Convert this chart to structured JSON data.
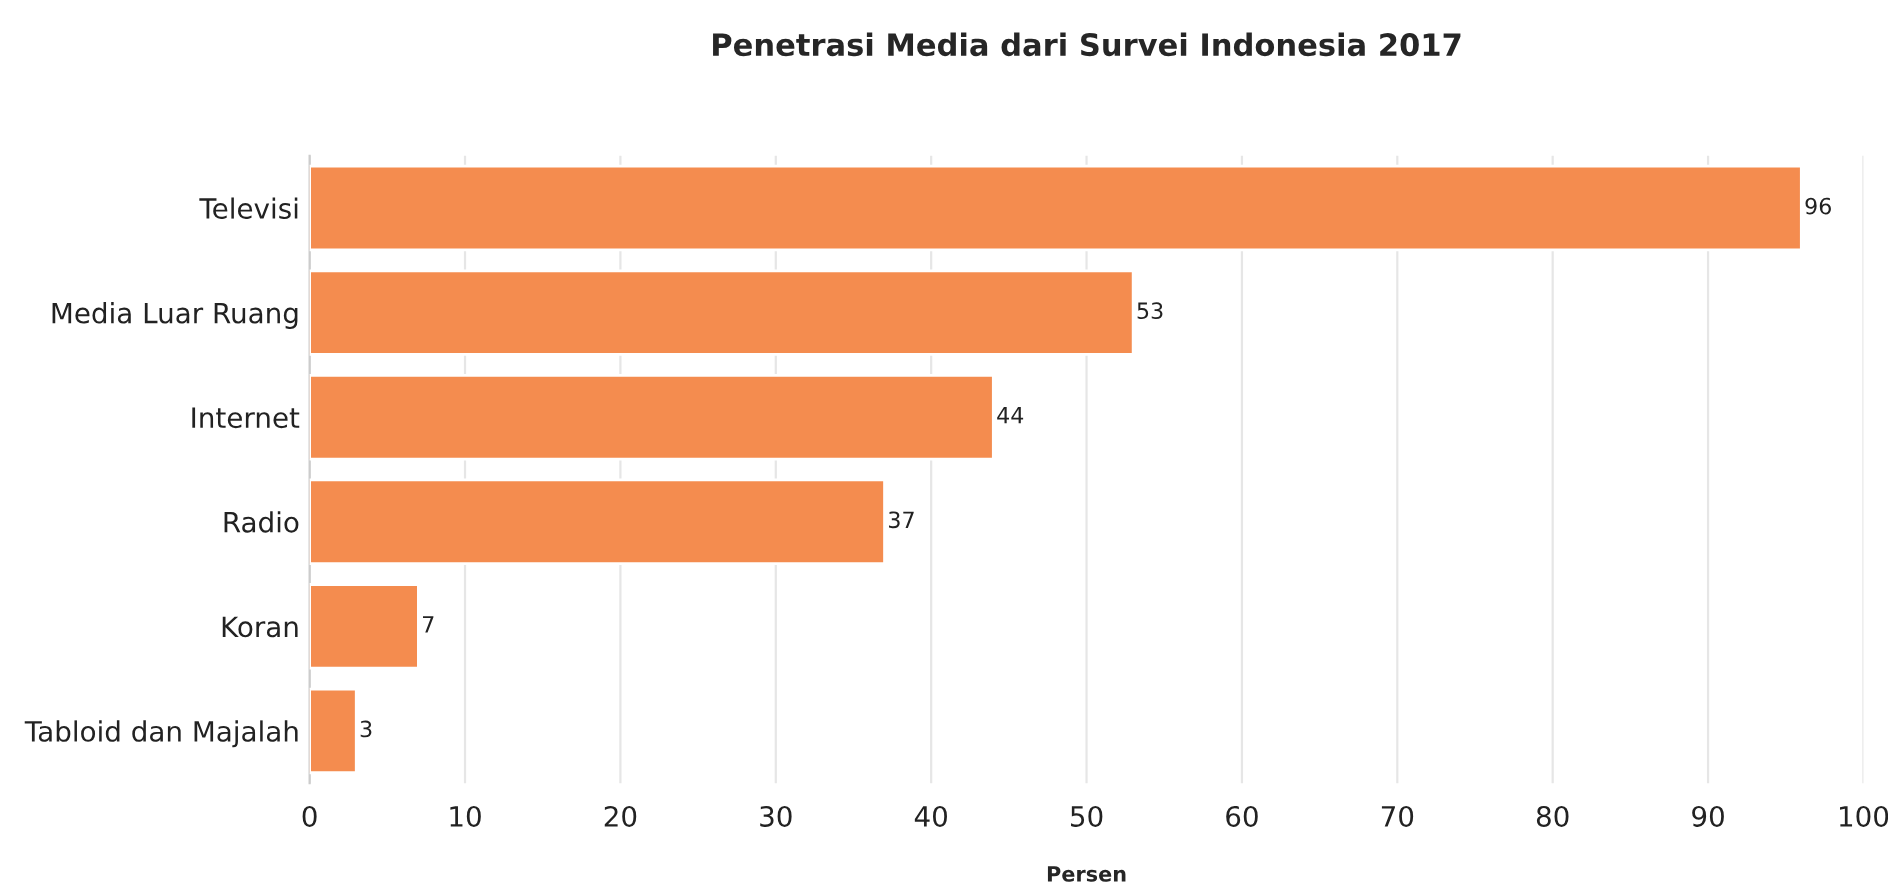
{
  "chart_data": {
    "type": "bar",
    "orientation": "horizontal",
    "title": "Penetrasi Media dari Survei Indonesia 2017",
    "xlabel": "Persen",
    "categories": [
      "Televisi",
      "Media Luar Ruang",
      "Internet",
      "Radio",
      "Koran",
      "Tabloid dan Majalah"
    ],
    "values": [
      96,
      53,
      44,
      37,
      7,
      3
    ],
    "color": "#f48c4f",
    "xlim": [
      0,
      100
    ],
    "xticks": [
      0,
      10,
      20,
      30,
      40,
      50,
      60,
      70,
      80,
      90,
      100
    ],
    "grid": "x",
    "data_labels": true
  }
}
